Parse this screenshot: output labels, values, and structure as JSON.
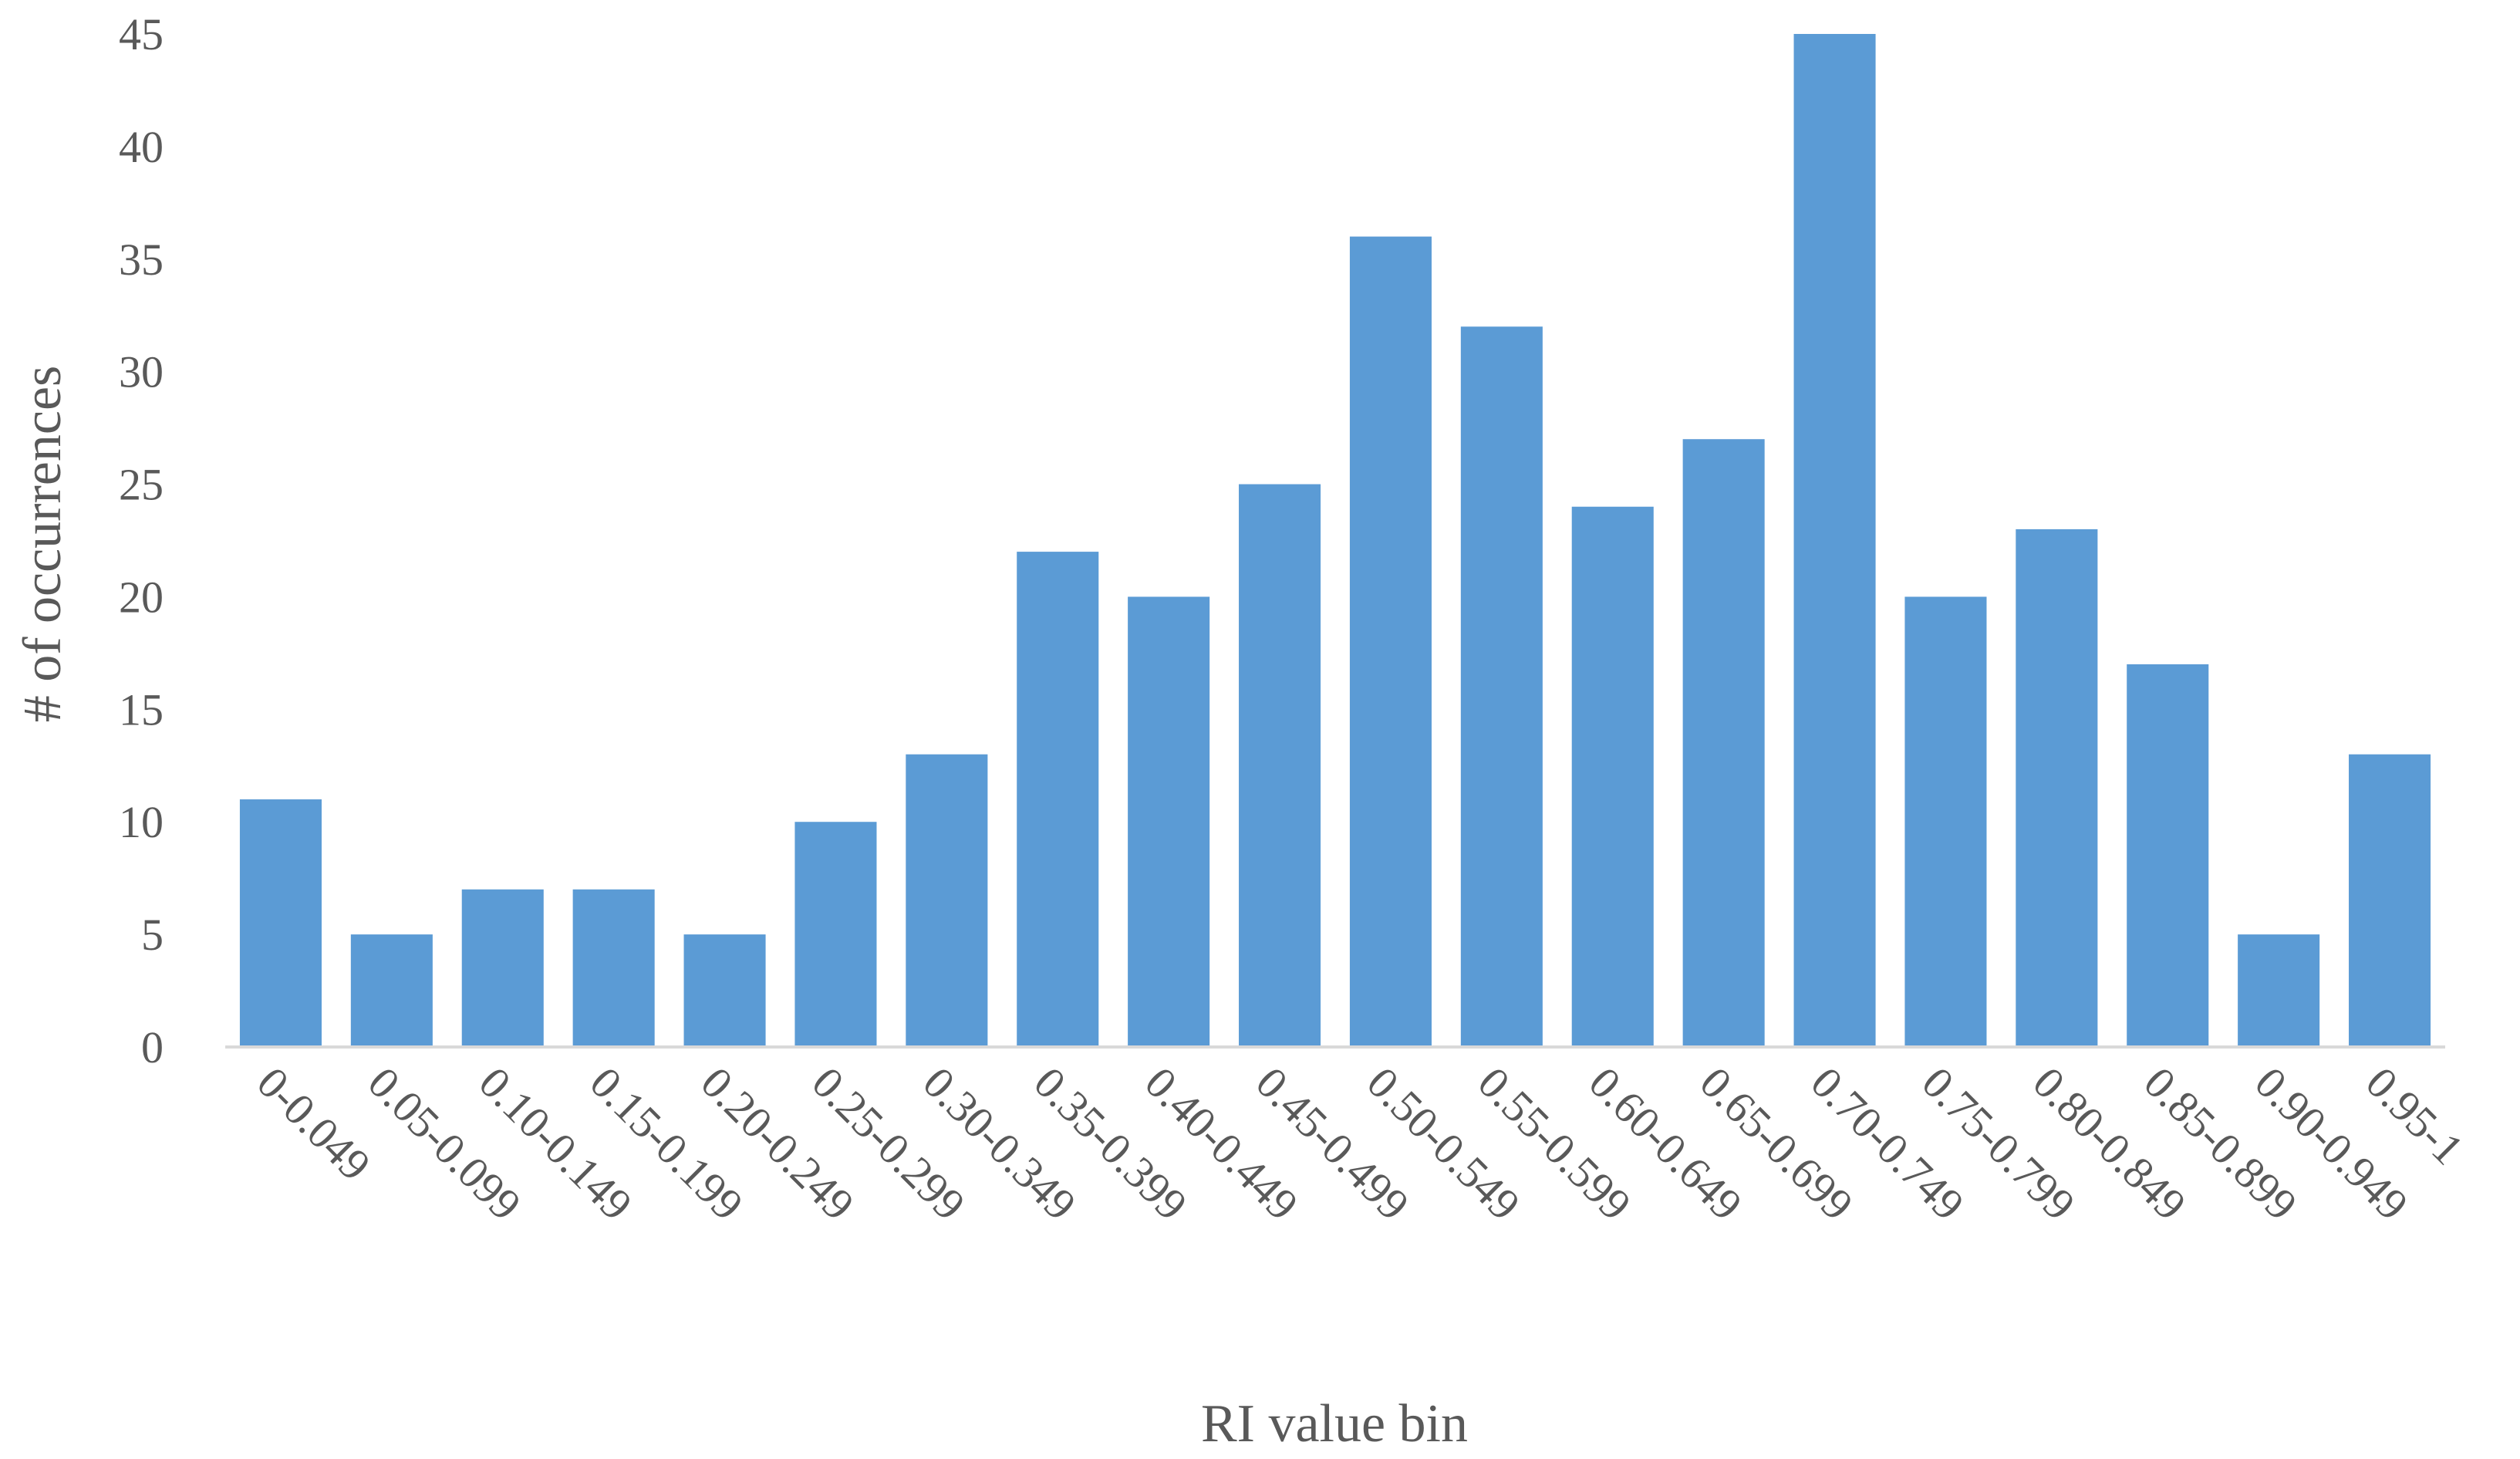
{
  "chart_data": {
    "type": "bar",
    "title": "",
    "xlabel": "RI value bin",
    "ylabel": "# of occurrences",
    "ylim": [
      0,
      45
    ],
    "yticks": [
      0,
      5,
      10,
      15,
      20,
      25,
      30,
      35,
      40,
      45
    ],
    "grid": false,
    "legend": "none",
    "bar_color": "#5b9bd5",
    "categories": [
      "0-0.049",
      "0.05-0.099",
      "0.10-0.149",
      "0.15-0.199",
      "0.20-0.249",
      "0.25-0.299",
      "0.30-0.349",
      "0.35-0.399",
      "0.40-0.449",
      "0.45-0.499",
      "0.50-0.549",
      "0.55-0.599",
      "0.60-0.649",
      "0.65-0.699",
      "0.70-0.749",
      "0.75-0.799",
      "0.80-0.849",
      "0.85-0.899",
      "0.90-0.949",
      "0.95-1"
    ],
    "values": [
      11,
      5,
      7,
      7,
      5,
      10,
      13,
      22,
      20,
      25,
      36,
      32,
      24,
      27,
      45,
      20,
      23,
      17,
      5,
      13
    ]
  }
}
